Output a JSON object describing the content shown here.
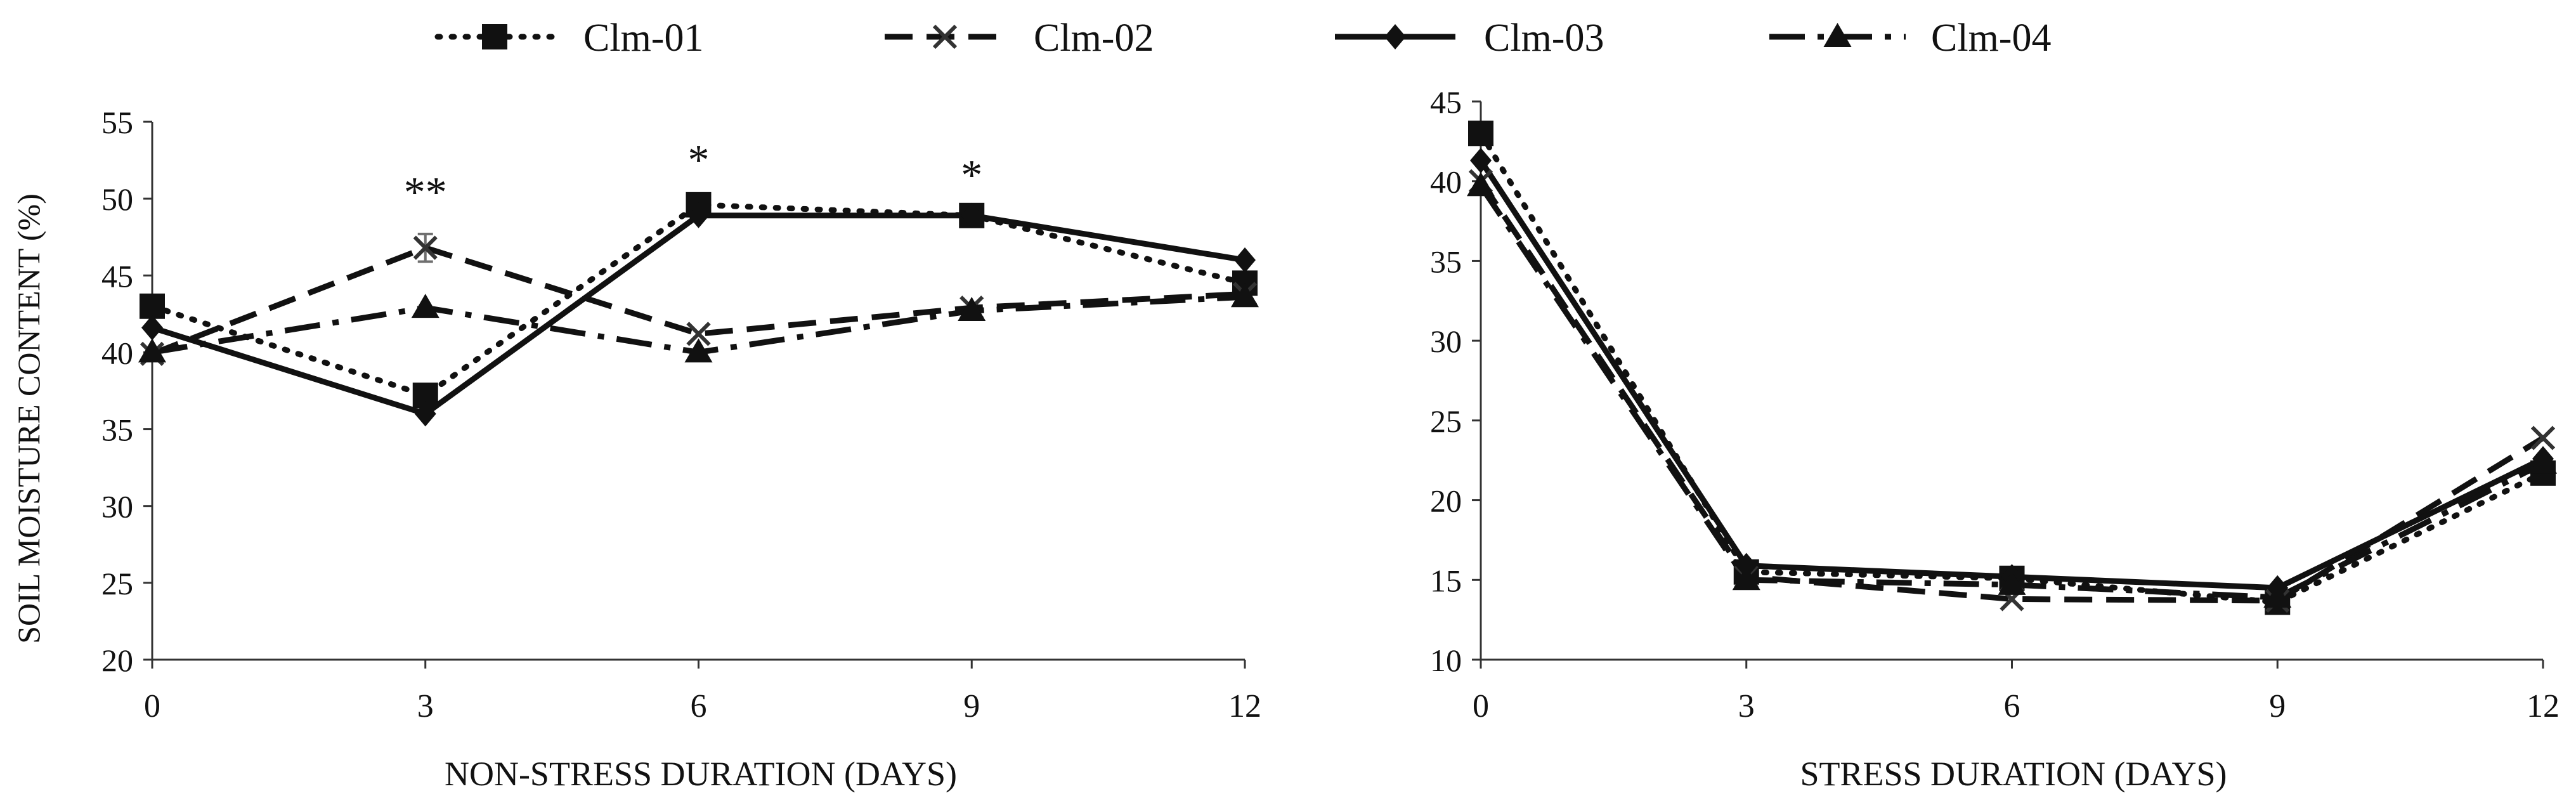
{
  "legend": [
    {
      "name": "Clm-01",
      "marker": "square",
      "dash": "dotted"
    },
    {
      "name": "Clm-02",
      "marker": "x",
      "dash": "dashed"
    },
    {
      "name": "Clm-03",
      "marker": "diamond",
      "dash": "solid"
    },
    {
      "name": "Clm-04",
      "marker": "triangle",
      "dash": "dashdot"
    }
  ],
  "chart_data": [
    {
      "type": "line",
      "title": "",
      "xlabel": "NON-STRESS DURATION (DAYS)",
      "ylabel": "SOIL MOISTURE CONTENT (%)",
      "x": [
        0,
        3,
        6,
        9,
        12
      ],
      "xlim": [
        0,
        12
      ],
      "ylim": [
        20,
        55
      ],
      "yticks": [
        20,
        25,
        30,
        35,
        40,
        45,
        50,
        55
      ],
      "grid": false,
      "series": [
        {
          "name": "Clm-01",
          "values": [
            43.0,
            37.2,
            49.6,
            48.9,
            44.5
          ]
        },
        {
          "name": "Clm-02",
          "values": [
            39.9,
            46.8,
            41.2,
            42.9,
            43.8
          ]
        },
        {
          "name": "Clm-03",
          "values": [
            41.6,
            36.0,
            48.9,
            48.9,
            46.0
          ]
        },
        {
          "name": "Clm-04",
          "values": [
            40.0,
            42.9,
            40.0,
            42.7,
            43.6
          ]
        }
      ],
      "error_bars": [
        {
          "series": "Clm-02",
          "x": 3,
          "low": 45.9,
          "high": 47.7
        }
      ],
      "annotations": [
        {
          "x": 3,
          "y": 49.5,
          "text": "**"
        },
        {
          "x": 6,
          "y": 51.6,
          "text": "*"
        },
        {
          "x": 9,
          "y": 50.6,
          "text": "*"
        }
      ]
    },
    {
      "type": "line",
      "title": "",
      "xlabel": "STRESS DURATION (DAYS)",
      "ylabel": "",
      "x": [
        0,
        3,
        6,
        9,
        12
      ],
      "xlim": [
        0,
        12
      ],
      "ylim": [
        10,
        45
      ],
      "yticks": [
        10,
        15,
        20,
        25,
        30,
        35,
        40,
        45
      ],
      "grid": false,
      "series": [
        {
          "name": "Clm-01",
          "values": [
            43.0,
            15.5,
            15.1,
            13.6,
            21.7
          ]
        },
        {
          "name": "Clm-02",
          "values": [
            40.0,
            15.2,
            13.8,
            13.7,
            23.9
          ]
        },
        {
          "name": "Clm-03",
          "values": [
            41.3,
            15.9,
            15.2,
            14.5,
            22.6
          ]
        },
        {
          "name": "Clm-04",
          "values": [
            39.7,
            15.0,
            14.7,
            13.9,
            22.3
          ]
        }
      ],
      "error_bars": [],
      "annotations": []
    }
  ],
  "colors": {
    "ink": "#111111",
    "error_bar": "#6f6f6f"
  }
}
